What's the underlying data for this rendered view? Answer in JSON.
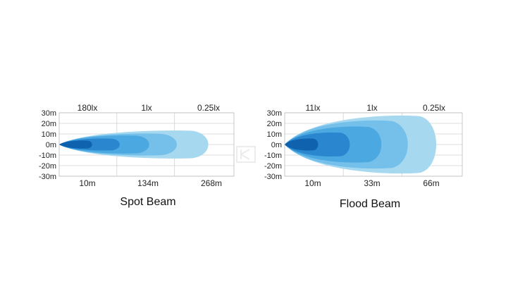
{
  "chart_data": [
    {
      "type": "area",
      "title": "Spot Beam",
      "colors": [
        "#0f63ae",
        "#2a86cf",
        "#4ba8e0",
        "#74c0ea",
        "#a6d8f0"
      ],
      "y_ticks": [
        "30m",
        "20m",
        "10m",
        "0m",
        "-10m",
        "-20m",
        "-30m"
      ],
      "ylim": [
        -30,
        30
      ],
      "lux_labels": [
        "180lx",
        "1lx",
        "0.25lx"
      ],
      "x_labels": [
        "10m",
        "134m",
        "268m"
      ],
      "zones": [
        {
          "reach": 0.19,
          "half_width": 4
        },
        {
          "reach": 0.35,
          "half_width": 6
        },
        {
          "reach": 0.52,
          "half_width": 9
        },
        {
          "reach": 0.68,
          "half_width": 11
        },
        {
          "reach": 0.86,
          "half_width": 14
        }
      ]
    },
    {
      "type": "area",
      "title": "Flood Beam",
      "colors": [
        "#0f63ae",
        "#2a86cf",
        "#4ba8e0",
        "#74c0ea",
        "#a6d8f0"
      ],
      "y_ticks": [
        "30m",
        "20m",
        "10m",
        "0m",
        "-10m",
        "-20m",
        "-30m"
      ],
      "ylim": [
        -30,
        30
      ],
      "lux_labels": [
        "11lx",
        "1lx",
        "0.25lx"
      ],
      "x_labels": [
        "10m",
        "33m",
        "66m"
      ],
      "zones": [
        {
          "reach": 0.19,
          "half_width": 6
        },
        {
          "reach": 0.37,
          "half_width": 12
        },
        {
          "reach": 0.55,
          "half_width": 18
        },
        {
          "reach": 0.7,
          "half_width": 24
        },
        {
          "reach": 0.86,
          "half_width": 29
        }
      ]
    }
  ]
}
